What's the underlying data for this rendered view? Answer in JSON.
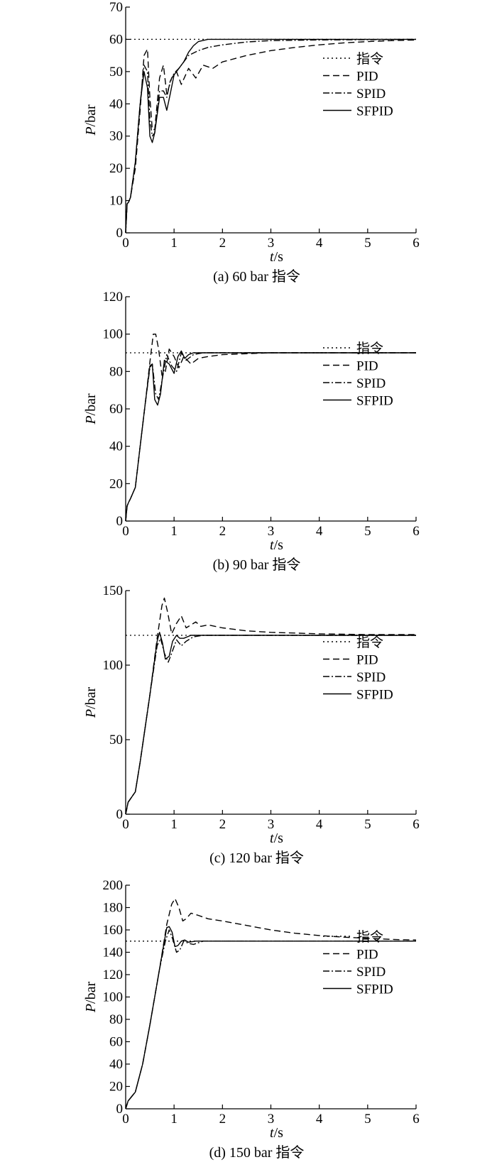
{
  "chart_data": [
    {
      "type": "line",
      "caption": "(a) 60 bar 指令",
      "xlabel": "t/s",
      "ylabel": "P/bar",
      "xlim": [
        0,
        6
      ],
      "ylim": [
        0,
        70
      ],
      "xticks": [
        0,
        1,
        2,
        3,
        4,
        5,
        6
      ],
      "yticks": [
        0,
        10,
        20,
        30,
        40,
        50,
        60,
        70
      ],
      "grid": false,
      "legend_position": "right",
      "series": [
        {
          "name": "指令",
          "style": "dotted",
          "x": [
            0,
            6
          ],
          "y": [
            60,
            60
          ]
        },
        {
          "name": "PID",
          "style": "dashed",
          "x": [
            0,
            0.03,
            0.06,
            0.1,
            0.2,
            0.3,
            0.38,
            0.45,
            0.5,
            0.55,
            0.6,
            0.7,
            0.78,
            0.85,
            0.95,
            1.05,
            1.15,
            1.3,
            1.45,
            1.6,
            1.8,
            2.0,
            2.5,
            3.0,
            3.5,
            4.0,
            4.5,
            5.0,
            5.5,
            6.0
          ],
          "y": [
            0,
            9,
            9.5,
            11,
            20,
            38,
            55,
            57,
            42,
            32,
            32,
            48,
            52,
            43,
            48,
            50,
            46,
            51,
            48,
            52,
            51,
            53,
            55,
            56.5,
            57.5,
            58.3,
            58.9,
            59.3,
            59.6,
            59.8
          ]
        },
        {
          "name": "SPID",
          "style": "dashdot",
          "x": [
            0,
            0.03,
            0.06,
            0.1,
            0.2,
            0.3,
            0.38,
            0.45,
            0.5,
            0.55,
            0.6,
            0.7,
            0.78,
            0.85,
            0.92,
            1.0,
            1.1,
            1.2,
            1.3,
            1.5,
            1.7,
            2.0,
            2.5,
            3.0,
            4.0,
            5.0,
            6.0
          ],
          "y": [
            0,
            9,
            9.5,
            11,
            22,
            40,
            52,
            50,
            35,
            30,
            31,
            44,
            44,
            42,
            47,
            49.5,
            51,
            53,
            55,
            56.5,
            57.5,
            58.3,
            59.2,
            59.6,
            59.8,
            59.9,
            60
          ]
        },
        {
          "name": "SFPID",
          "style": "solid",
          "x": [
            0,
            0.03,
            0.06,
            0.1,
            0.2,
            0.3,
            0.38,
            0.45,
            0.5,
            0.55,
            0.6,
            0.7,
            0.78,
            0.85,
            0.92,
            1.0,
            1.1,
            1.2,
            1.3,
            1.4,
            1.5,
            1.7,
            2.0,
            3.0,
            6.0
          ],
          "y": [
            0,
            9,
            9.5,
            11,
            22,
            40,
            50,
            45,
            30,
            28,
            31,
            42,
            42,
            38,
            43,
            49,
            51,
            53,
            56,
            58,
            59.3,
            60,
            60,
            60,
            60
          ]
        }
      ]
    },
    {
      "type": "line",
      "caption": "(b) 90 bar 指令",
      "xlabel": "t/s",
      "ylabel": "P/bar",
      "xlim": [
        0,
        6
      ],
      "ylim": [
        0,
        120
      ],
      "xticks": [
        0,
        1,
        2,
        3,
        4,
        5,
        6
      ],
      "yticks": [
        0,
        20,
        40,
        60,
        80,
        100,
        120
      ],
      "grid": false,
      "legend_position": "right",
      "series": [
        {
          "name": "指令",
          "style": "dotted",
          "x": [
            0,
            6
          ],
          "y": [
            90,
            90
          ]
        },
        {
          "name": "PID",
          "style": "dashed",
          "x": [
            0,
            0.03,
            0.06,
            0.1,
            0.2,
            0.3,
            0.4,
            0.5,
            0.57,
            0.62,
            0.68,
            0.75,
            0.82,
            0.9,
            1.0,
            1.1,
            1.2,
            1.35,
            1.5,
            1.7,
            2.0,
            2.5,
            3.0,
            4.0,
            5.0,
            6.0
          ],
          "y": [
            0,
            8,
            10,
            12,
            18,
            40,
            62,
            85,
            100,
            100,
            92,
            78,
            80,
            92,
            88,
            82,
            88,
            84,
            87,
            88,
            89,
            89.5,
            90,
            90,
            90,
            90
          ]
        },
        {
          "name": "SPID",
          "style": "dashdot",
          "x": [
            0,
            0.03,
            0.06,
            0.1,
            0.2,
            0.3,
            0.4,
            0.5,
            0.55,
            0.62,
            0.68,
            0.75,
            0.85,
            0.95,
            1.05,
            1.15,
            1.25,
            1.4,
            1.6,
            2.0,
            3.0,
            6.0
          ],
          "y": [
            0,
            8,
            10,
            12,
            18,
            40,
            62,
            82,
            84,
            68,
            65,
            75,
            89,
            83,
            80,
            90,
            86,
            89,
            90,
            90,
            90,
            90
          ]
        },
        {
          "name": "SFPID",
          "style": "solid",
          "x": [
            0,
            0.03,
            0.06,
            0.1,
            0.2,
            0.3,
            0.4,
            0.5,
            0.55,
            0.6,
            0.66,
            0.72,
            0.8,
            0.9,
            1.0,
            1.08,
            1.15,
            1.22,
            1.3,
            1.4,
            1.5,
            2.0,
            3.0,
            6.0
          ],
          "y": [
            0,
            8,
            10,
            12,
            18,
            40,
            62,
            83,
            84,
            65,
            62,
            68,
            86,
            84,
            79,
            88,
            91,
            87,
            89,
            90,
            90,
            90,
            90,
            90
          ]
        }
      ]
    },
    {
      "type": "line",
      "caption": "(c) 120 bar 指令",
      "xlabel": "t/s",
      "ylabel": "P/bar",
      "xlim": [
        0,
        6
      ],
      "ylim": [
        0,
        150
      ],
      "xticks": [
        0,
        1,
        2,
        3,
        4,
        5,
        6
      ],
      "yticks": [
        0,
        50,
        100,
        150
      ],
      "grid": false,
      "legend_position": "right",
      "series": [
        {
          "name": "指令",
          "style": "dotted",
          "x": [
            0,
            6
          ],
          "y": [
            120,
            120
          ]
        },
        {
          "name": "PID",
          "style": "dashed",
          "x": [
            0,
            0.05,
            0.2,
            0.3,
            0.5,
            0.65,
            0.75,
            0.8,
            0.87,
            0.95,
            1.05,
            1.15,
            1.25,
            1.35,
            1.45,
            1.55,
            1.7,
            2.0,
            2.5,
            3.0,
            4.0,
            5.0,
            6.0
          ],
          "y": [
            0,
            8,
            15,
            35,
            80,
            118,
            140,
            145,
            135,
            121,
            128,
            133,
            125,
            127,
            129,
            126,
            127,
            125,
            123,
            122,
            121,
            120.5,
            120.5
          ]
        },
        {
          "name": "SPID",
          "style": "dashdot",
          "x": [
            0,
            0.05,
            0.2,
            0.3,
            0.5,
            0.65,
            0.72,
            0.8,
            0.88,
            0.95,
            1.05,
            1.15,
            1.25,
            1.4,
            1.6,
            2.0,
            3.0,
            6.0
          ],
          "y": [
            0,
            8,
            15,
            35,
            80,
            113,
            118,
            108,
            102,
            108,
            117,
            113,
            116,
            119,
            120,
            120,
            120,
            120
          ]
        },
        {
          "name": "SFPID",
          "style": "solid",
          "x": [
            0,
            0.05,
            0.2,
            0.3,
            0.5,
            0.65,
            0.7,
            0.76,
            0.82,
            0.9,
            0.97,
            1.05,
            1.12,
            1.2,
            1.35,
            1.5,
            2.0,
            3.0,
            6.0
          ],
          "y": [
            0,
            8,
            15,
            35,
            80,
            116,
            122,
            115,
            104,
            106,
            116,
            120,
            118,
            118,
            120,
            120,
            120,
            120,
            120
          ]
        }
      ]
    },
    {
      "type": "line",
      "caption": "(d) 150 bar 指令",
      "xlabel": "t/s",
      "ylabel": "P/bar",
      "xlim": [
        0,
        6
      ],
      "ylim": [
        0,
        200
      ],
      "xticks": [
        0,
        1,
        2,
        3,
        4,
        5,
        6
      ],
      "yticks": [
        0,
        20,
        40,
        60,
        80,
        100,
        120,
        140,
        160,
        180,
        200
      ],
      "grid": false,
      "legend_position": "right",
      "series": [
        {
          "name": "指令",
          "style": "dotted",
          "x": [
            0,
            6
          ],
          "y": [
            150,
            150
          ]
        },
        {
          "name": "PID",
          "style": "dashed",
          "x": [
            0,
            0.05,
            0.2,
            0.35,
            0.5,
            0.7,
            0.85,
            0.95,
            1.02,
            1.1,
            1.18,
            1.25,
            1.35,
            1.5,
            1.7,
            2.0,
            2.5,
            3.0,
            3.5,
            4.0,
            4.5,
            5.0,
            5.5,
            6.0
          ],
          "y": [
            0,
            7,
            15,
            40,
            75,
            125,
            165,
            183,
            188,
            180,
            168,
            170,
            175,
            173,
            170,
            168,
            164,
            160,
            157,
            155,
            153.5,
            152.5,
            151.5,
            151
          ]
        },
        {
          "name": "SPID",
          "style": "dashdot",
          "x": [
            0,
            0.05,
            0.2,
            0.35,
            0.5,
            0.7,
            0.82,
            0.9,
            0.97,
            1.05,
            1.12,
            1.2,
            1.3,
            1.4,
            1.6,
            2.0,
            3.0,
            6.0
          ],
          "y": [
            0,
            7,
            15,
            40,
            75,
            125,
            150,
            160,
            152,
            140,
            142,
            150,
            148,
            147,
            150,
            150,
            150,
            150
          ]
        },
        {
          "name": "SFPID",
          "style": "solid",
          "x": [
            0,
            0.05,
            0.2,
            0.35,
            0.5,
            0.7,
            0.8,
            0.85,
            0.9,
            0.96,
            1.02,
            1.08,
            1.15,
            1.22,
            1.3,
            1.45,
            1.6,
            2.0,
            3.0,
            6.0
          ],
          "y": [
            0,
            7,
            15,
            40,
            75,
            125,
            150,
            162,
            163,
            158,
            145,
            146,
            150,
            151,
            149,
            150,
            150,
            150,
            150,
            150
          ]
        }
      ]
    }
  ]
}
